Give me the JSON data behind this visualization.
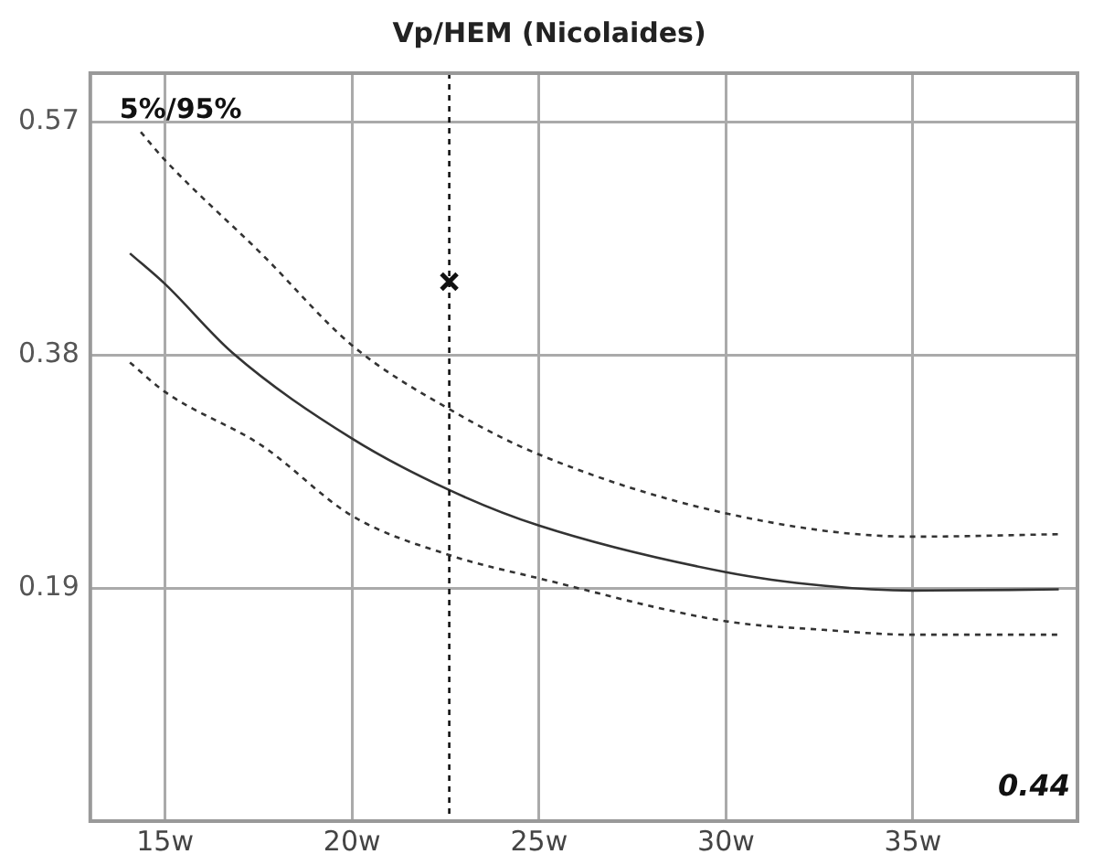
{
  "chart_data": {
    "type": "line",
    "title": "Vp/HEM (Nicolaides)",
    "xlim": [
      13,
      39.4
    ],
    "ylim": [
      0,
      0.61
    ],
    "xticks": [
      {
        "value": 15,
        "label": "15w"
      },
      {
        "value": 20,
        "label": "20w"
      },
      {
        "value": 25,
        "label": "25w"
      },
      {
        "value": 30,
        "label": "30w"
      },
      {
        "value": 35,
        "label": "35w"
      }
    ],
    "yticks": [
      0.19,
      0.38,
      0.57
    ],
    "grid": true,
    "legend": false,
    "series": [
      {
        "color": "#333333",
        "line_style": "dashed",
        "marker": "none",
        "x": [
          14.35,
          15,
          17.6,
          20,
          22.6,
          25,
          30,
          35,
          38.9
        ],
        "values": [
          0.562,
          0.539,
          0.462,
          0.388,
          0.336,
          0.299,
          0.251,
          0.232,
          0.234
        ]
      },
      {
        "color": "#333333",
        "line_style": "solid",
        "marker": "none",
        "x": [
          14.06,
          15,
          16.8,
          20,
          22.6,
          25,
          30,
          32.6,
          35,
          38.9
        ],
        "values": [
          0.463,
          0.438,
          0.382,
          0.312,
          0.27,
          0.241,
          0.203,
          0.192,
          0.188,
          0.189
        ]
      },
      {
        "color": "#333333",
        "line_style": "dashed",
        "marker": "none",
        "x": [
          14.06,
          15,
          17.6,
          20,
          22.6,
          25,
          30,
          32.6,
          35,
          38.9
        ],
        "values": [
          0.374,
          0.35,
          0.306,
          0.249,
          0.217,
          0.198,
          0.163,
          0.156,
          0.152,
          0.152
        ]
      },
      {
        "type": "scatter",
        "color": "#111111",
        "marker": "cross",
        "x": [
          22.6
        ],
        "values": [
          0.44
        ]
      }
    ],
    "ref_lines": [
      {
        "axis": "x",
        "value": 22.6,
        "line_style": "dashed",
        "color": "#111111"
      }
    ],
    "annotations": [
      "5%/95%",
      "0.44"
    ]
  }
}
